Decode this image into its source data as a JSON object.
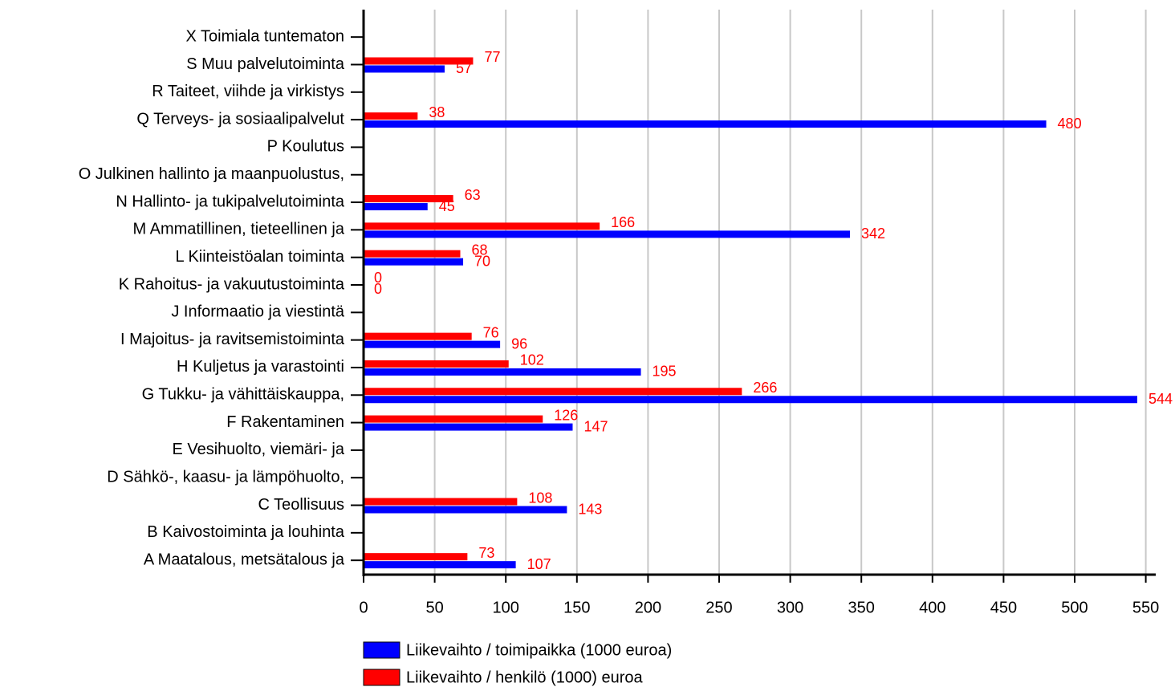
{
  "chart_data": {
    "type": "hbar",
    "categories": [
      "X Toimiala tuntematon",
      "S Muu palvelutoiminta",
      "R Taiteet, viihde ja virkistys",
      "Q Terveys- ja sosiaalipalvelut",
      "P Koulutus",
      "O Julkinen hallinto ja maanpuolustus,",
      "N Hallinto- ja tukipalvelutoiminta",
      "M Ammatillinen, tieteellinen ja",
      "L Kiinteistöalan toiminta",
      "K Rahoitus- ja vakuutustoiminta",
      "J Informaatio ja viestintä",
      "I Majoitus- ja ravitsemistoiminta",
      "H Kuljetus ja varastointi",
      "G Tukku- ja vähittäiskauppa,",
      "F Rakentaminen",
      "E Vesihuolto, viemäri- ja",
      "D Sähkö-, kaasu- ja lämpöhuolto,",
      "C Teollisuus",
      "B Kaivostoiminta ja louhinta",
      "A Maatalous, metsätalous ja"
    ],
    "series": [
      {
        "name": "Liikevaihto / toimipaikka (1000 euroa)",
        "color": "#0000ff",
        "values": [
          null,
          57,
          null,
          480,
          null,
          null,
          45,
          342,
          70,
          0,
          null,
          96,
          195,
          544,
          147,
          null,
          null,
          143,
          null,
          107
        ]
      },
      {
        "name": "Liikevaihto / henkilö (1000) euroa",
        "color": "#ff0000",
        "values": [
          null,
          77,
          null,
          38,
          null,
          null,
          63,
          166,
          68,
          0,
          null,
          76,
          102,
          266,
          126,
          null,
          null,
          108,
          null,
          73
        ]
      }
    ],
    "xlim": [
      0,
      557
    ],
    "xticks": [
      0,
      50,
      100,
      150,
      200,
      250,
      300,
      350,
      400,
      450,
      500,
      550
    ],
    "grid": true,
    "legend": "bottom",
    "value_label_color": "#ff0000"
  }
}
